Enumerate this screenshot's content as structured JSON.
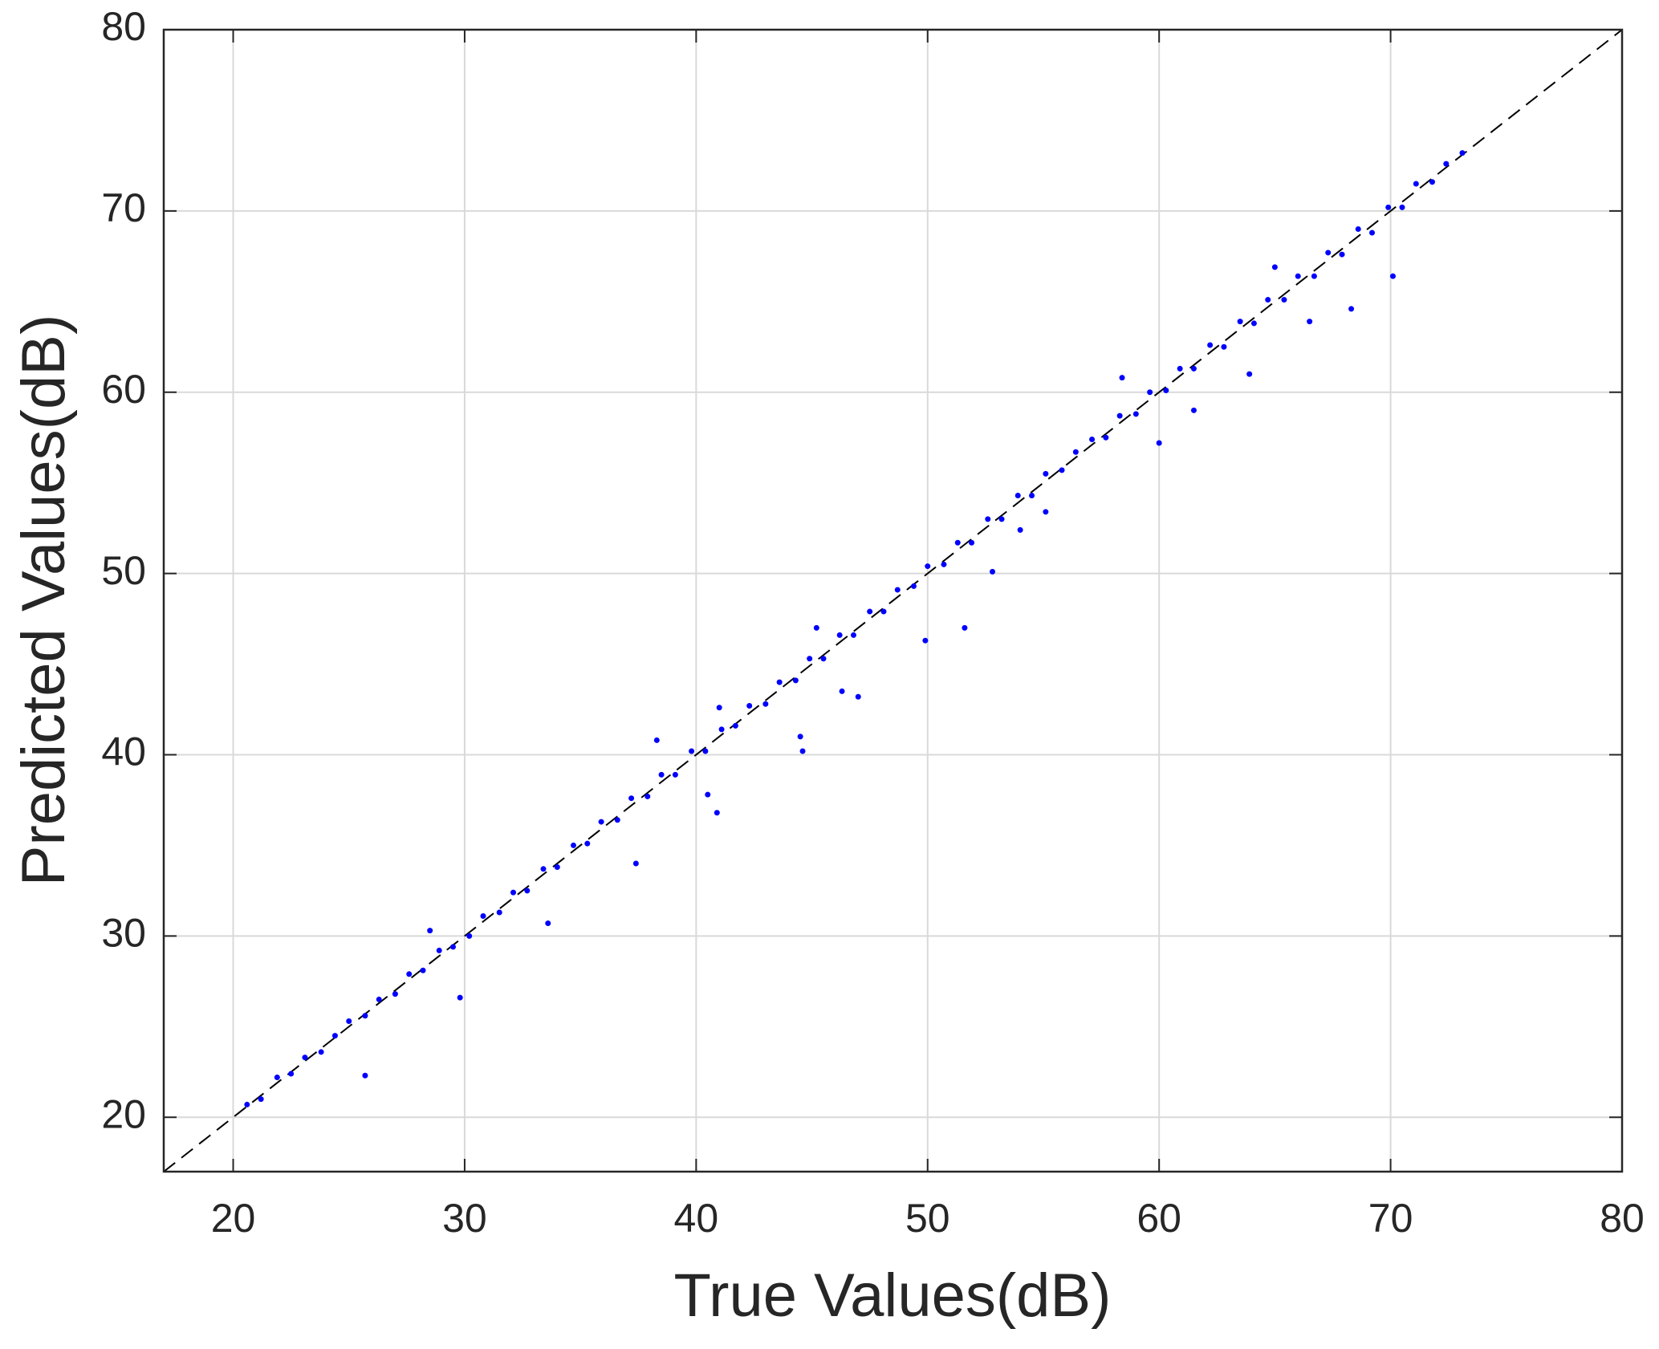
{
  "chart_data": {
    "type": "scatter",
    "x_label": "True Values(dB)",
    "y_label": "Predicted Values(dB)",
    "xlim": [
      17,
      80
    ],
    "ylim": [
      17,
      80
    ],
    "xticks": [
      20,
      30,
      40,
      50,
      60,
      70,
      80
    ],
    "yticks": [
      20,
      30,
      40,
      50,
      60,
      70,
      80
    ],
    "grid": true,
    "series": [
      {
        "color": "#0000ff",
        "x": [
          20.6,
          21.2,
          21.9,
          22.5,
          23.1,
          23.8,
          24.4,
          25.0,
          25.7,
          26.3,
          27.0,
          27.6,
          28.2,
          28.9,
          29.5,
          30.2,
          30.8,
          31.5,
          32.1,
          32.7,
          33.4,
          34.0,
          34.7,
          35.3,
          35.9,
          36.6,
          37.2,
          37.9,
          38.5,
          39.1,
          39.8,
          40.4,
          41.1,
          41.7,
          42.3,
          43.0,
          43.6,
          44.3,
          44.9,
          45.5,
          46.2,
          46.8,
          47.5,
          48.1,
          48.7,
          49.4,
          50.0,
          50.7,
          51.3,
          51.9,
          52.6,
          53.2,
          53.9,
          54.5,
          55.1,
          55.8,
          56.4,
          57.1,
          57.7,
          58.3,
          59.0,
          59.6,
          60.3,
          60.9,
          61.5,
          62.2,
          62.8,
          63.5,
          64.1,
          64.7,
          65.4,
          66.0,
          66.7,
          67.3,
          67.9,
          68.6,
          69.2,
          69.9,
          70.5,
          71.1,
          71.8,
          72.4,
          73.1,
          25.7,
          29.8,
          33.6,
          37.4,
          40.9,
          40.5,
          44.6,
          44.5,
          46.3,
          47.0,
          49.9,
          51.6,
          52.8,
          55.1,
          60.0,
          61.5,
          63.9,
          66.5,
          68.3,
          70.1,
          28.5,
          41.0,
          38.3,
          45.2,
          54.0,
          58.4,
          65.0
        ],
        "y": [
          20.7,
          21.0,
          22.2,
          22.4,
          23.3,
          23.6,
          24.5,
          25.3,
          25.6,
          26.5,
          26.8,
          27.9,
          28.1,
          29.2,
          29.4,
          30.0,
          31.1,
          31.3,
          32.4,
          32.5,
          33.7,
          33.8,
          35.0,
          35.1,
          36.3,
          36.4,
          37.6,
          37.7,
          38.9,
          38.9,
          40.2,
          40.2,
          41.4,
          41.6,
          42.7,
          42.8,
          44.0,
          44.1,
          45.3,
          45.3,
          46.6,
          46.6,
          47.9,
          47.9,
          49.1,
          49.3,
          50.4,
          50.5,
          51.7,
          51.7,
          53.0,
          53.0,
          54.3,
          54.3,
          55.5,
          55.7,
          56.7,
          57.4,
          57.5,
          58.7,
          58.8,
          60.0,
          60.1,
          61.3,
          61.3,
          62.6,
          62.5,
          63.9,
          63.8,
          65.1,
          65.1,
          66.4,
          66.4,
          67.7,
          67.6,
          69.0,
          68.8,
          70.2,
          70.2,
          71.5,
          71.6,
          72.6,
          73.2,
          22.3,
          26.6,
          30.7,
          34.0,
          36.8,
          37.8,
          40.2,
          41.0,
          43.5,
          43.2,
          46.3,
          47.0,
          50.1,
          53.4,
          57.2,
          59.0,
          61.0,
          63.9,
          64.6,
          66.4,
          30.3,
          42.6,
          40.8,
          47.0,
          52.4,
          60.8,
          66.9
        ]
      }
    ]
  }
}
